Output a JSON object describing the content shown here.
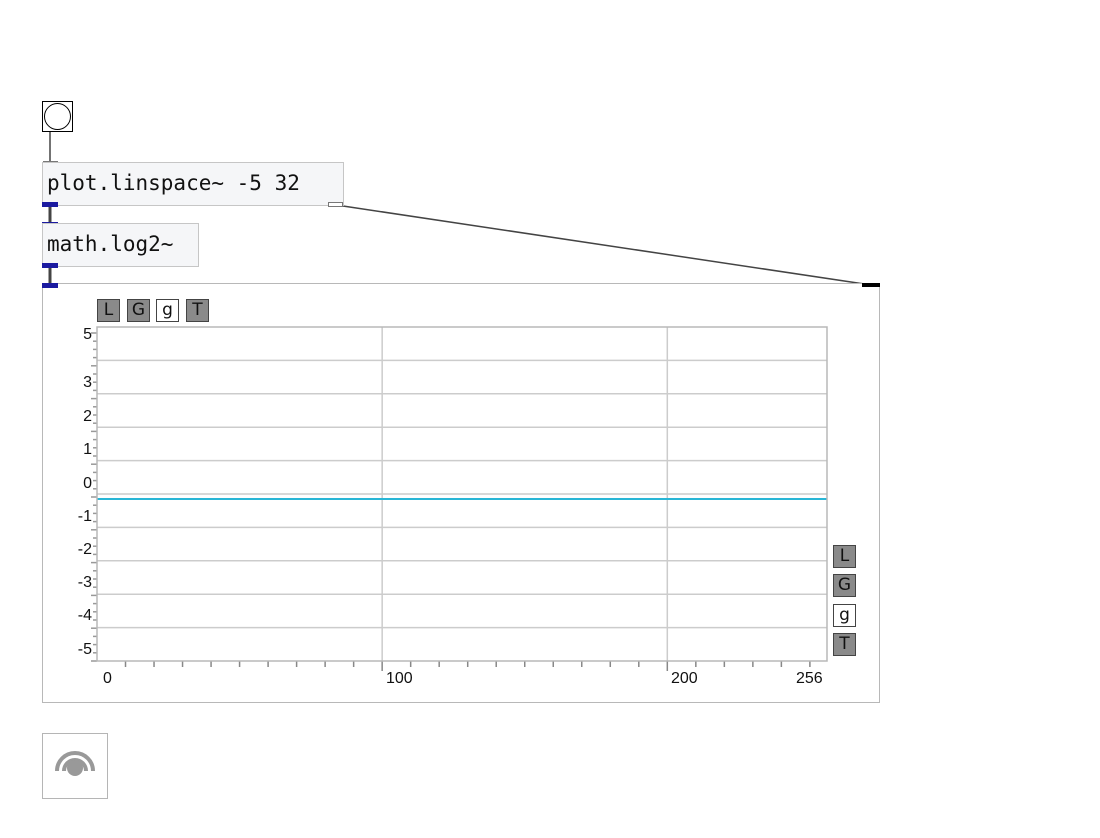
{
  "objects": {
    "linspace": "plot.linspace~ -5 32",
    "log2": "math.log2~"
  },
  "plot": {
    "toolbar_top": [
      "L",
      "G",
      "g",
      "T"
    ],
    "toolbar_side": [
      "L",
      "G",
      "g",
      "T"
    ],
    "line_color": "#29b6d6",
    "grid_color": "#cccccc"
  },
  "chart_data": {
    "type": "line",
    "x": [
      0,
      256
    ],
    "series": [
      {
        "values": [
          -0.15,
          -0.15
        ]
      }
    ],
    "xlim": [
      0,
      256
    ],
    "ylim": [
      -5,
      5
    ],
    "x_ticks": [
      "0",
      "100",
      "200",
      "256"
    ],
    "y_ticks": [
      "5",
      "3",
      "2",
      "1",
      "0",
      "-1",
      "-2",
      "-3",
      "-4",
      "-5"
    ],
    "grid": true
  },
  "icons": {
    "bang": "bang-icon",
    "dac": "speaker-icon"
  }
}
